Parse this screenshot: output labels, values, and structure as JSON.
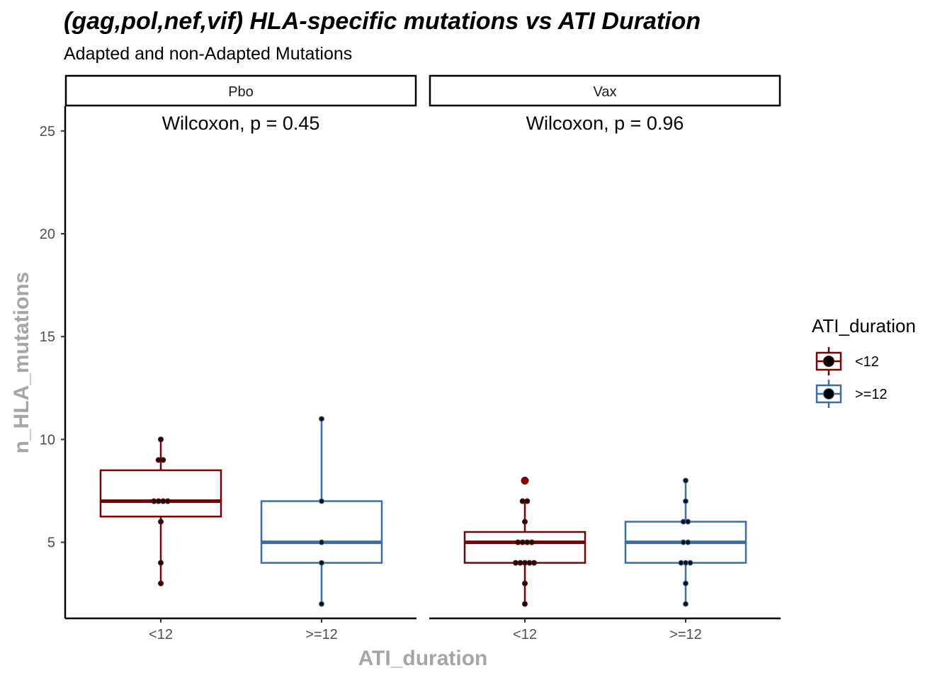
{
  "title": "(gag,pol,nef,vif) HLA-specific mutations vs ATI Duration",
  "subtitle": "Adapted and non-Adapted Mutations",
  "colors": {
    "lt12": "#7a0000",
    "ge12": "#3a6ea5",
    "points": "#111111"
  },
  "chart_data": {
    "type": "box",
    "xlabel": "ATI_duration",
    "ylabel": "n_HLA_mutations",
    "ylim": [
      1.3,
      26.2
    ],
    "yticks": [
      5,
      10,
      15,
      20,
      25
    ],
    "categories": [
      "<12",
      ">=12"
    ],
    "legend": {
      "title": "ATI_duration",
      "position": "right",
      "entries": [
        "<12",
        ">=12"
      ]
    },
    "facets": [
      {
        "name": "Pbo",
        "stat_label": "Wilcoxon, p = 0.45",
        "boxes": [
          {
            "group": "<12",
            "q1": 6.25,
            "median": 7,
            "q3": 8.5,
            "whisker_low": 3,
            "whisker_high": 10,
            "points": [
              3,
              4,
              6,
              7,
              7,
              7,
              7,
              9,
              9,
              10
            ],
            "outliers": []
          },
          {
            "group": ">=12",
            "q1": 4,
            "median": 5,
            "q3": 7,
            "whisker_low": 2,
            "whisker_high": 11,
            "points": [
              2,
              4,
              5,
              7,
              11
            ],
            "outliers": []
          }
        ]
      },
      {
        "name": "Vax",
        "stat_label": "Wilcoxon, p = 0.96",
        "boxes": [
          {
            "group": "<12",
            "q1": 4,
            "median": 5,
            "q3": 5.5,
            "whisker_low": 2,
            "whisker_high": 7,
            "points": [
              2,
              3,
              4,
              4,
              4,
              4,
              4,
              5,
              5,
              5,
              5,
              6,
              7,
              7
            ],
            "outliers": [
              8
            ]
          },
          {
            "group": ">=12",
            "q1": 4,
            "median": 5,
            "q3": 6,
            "whisker_low": 2,
            "whisker_high": 8,
            "points": [
              2,
              3,
              4,
              4,
              4,
              5,
              5,
              6,
              6,
              7,
              8
            ],
            "outliers": []
          }
        ]
      }
    ]
  }
}
